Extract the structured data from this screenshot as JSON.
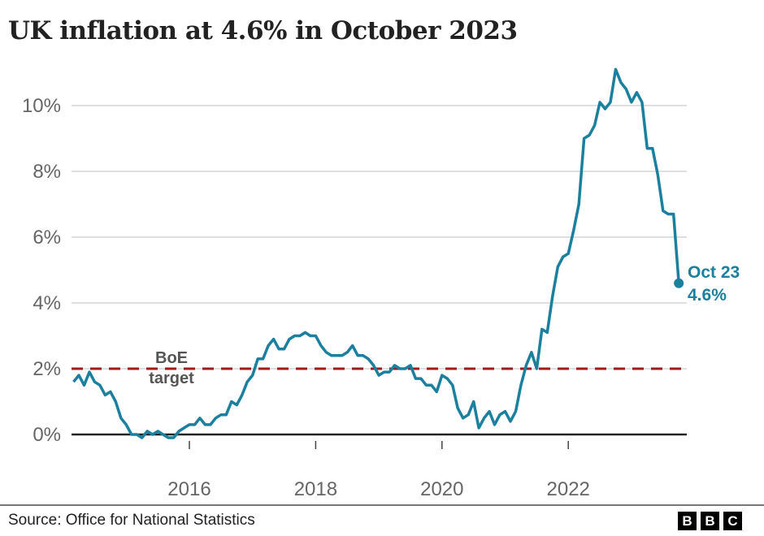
{
  "chart_data": {
    "type": "line",
    "title": "UK inflation at 4.6% in October 2023",
    "xlabel": "",
    "ylabel": "",
    "ylim": [
      -0.5,
      11.2
    ],
    "yticks": [
      0,
      2,
      4,
      6,
      8,
      10
    ],
    "ytick_labels": [
      "0%",
      "2%",
      "4%",
      "6%",
      "8%",
      "10%"
    ],
    "xtick_labels": [
      "2016",
      "2018",
      "2020",
      "2022"
    ],
    "grid": true,
    "start_month": "2014-03",
    "series": [
      {
        "color": "#1b809e",
        "values": [
          1.6,
          1.8,
          1.5,
          1.9,
          1.6,
          1.5,
          1.2,
          1.3,
          1.0,
          0.5,
          0.3,
          0.0,
          0.0,
          -0.1,
          0.1,
          0.0,
          0.1,
          0.0,
          -0.1,
          -0.1,
          0.1,
          0.2,
          0.3,
          0.3,
          0.5,
          0.3,
          0.3,
          0.5,
          0.6,
          0.6,
          1.0,
          0.9,
          1.2,
          1.6,
          1.8,
          2.3,
          2.3,
          2.7,
          2.9,
          2.6,
          2.6,
          2.9,
          3.0,
          3.0,
          3.1,
          3.0,
          3.0,
          2.7,
          2.5,
          2.4,
          2.4,
          2.4,
          2.5,
          2.7,
          2.4,
          2.4,
          2.3,
          2.1,
          1.8,
          1.9,
          1.9,
          2.1,
          2.0,
          2.0,
          2.1,
          1.7,
          1.7,
          1.5,
          1.5,
          1.3,
          1.8,
          1.7,
          1.5,
          0.8,
          0.5,
          0.6,
          1.0,
          0.2,
          0.5,
          0.7,
          0.3,
          0.6,
          0.7,
          0.4,
          0.7,
          1.5,
          2.1,
          2.5,
          2.0,
          3.2,
          3.1,
          4.2,
          5.1,
          5.4,
          5.5,
          6.2,
          7.0,
          9.0,
          9.1,
          9.4,
          10.1,
          9.9,
          10.1,
          11.1,
          10.7,
          10.5,
          10.1,
          10.4,
          10.1,
          8.7,
          8.7,
          7.9,
          6.8,
          6.7,
          6.7,
          4.6
        ]
      }
    ],
    "reference_line": {
      "value": 2,
      "label_line1": "BoE",
      "label_line2": "target",
      "color": "#9e1b1b"
    },
    "end_label": {
      "line1": "Oct 23",
      "line2": "4.6%"
    }
  },
  "footer": {
    "source": "Source: Office for National Statistics",
    "logo": [
      "B",
      "B",
      "C"
    ]
  }
}
